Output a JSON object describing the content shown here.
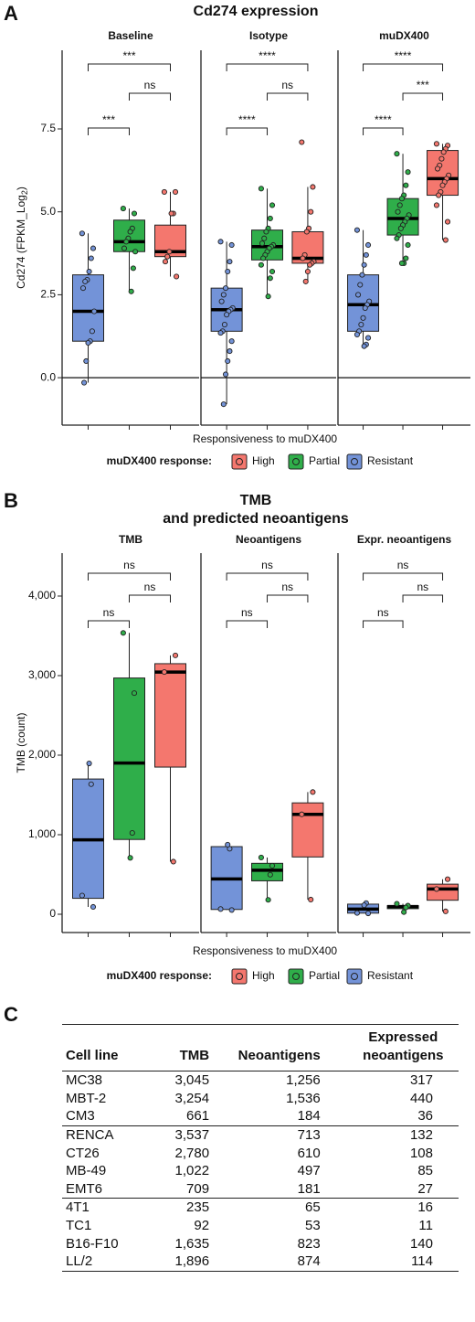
{
  "chart_data": [
    {
      "type": "boxplot",
      "panel": "A",
      "title": "Cd274 expression",
      "y_label": {
        "main": "Cd274 (FPKM_Log",
        "sub": "2",
        "end": ")"
      },
      "x_label": "Responsiveness to muDX400",
      "ylim": [
        -1.43,
        9.87
      ],
      "yticks": [
        {
          "value": 0,
          "label": "0.0"
        },
        {
          "value": 2.5,
          "label": "2.5"
        },
        {
          "value": 5,
          "label": "5.0"
        },
        {
          "value": 7.5,
          "label": "7.5"
        }
      ],
      "hline": 0,
      "legend_title": "muDX400 response:",
      "groups": [
        {
          "name": "Resistant",
          "color": "#7393d8"
        },
        {
          "name": "Partial",
          "color": "#2fae4a"
        },
        {
          "name": "High",
          "color": "#f4776e"
        }
      ],
      "facets": [
        {
          "name": "Baseline",
          "comparisons": [
            "***",
            "ns",
            "***"
          ],
          "boxes": [
            {
              "whisker_low": -0.15,
              "q1": 1.1,
              "median": 2.0,
              "q3": 3.1,
              "whisker_high": 4.35,
              "points": [
                4.35,
                3.9,
                3.6,
                3.2,
                2.95,
                2.9,
                2.7,
                2.0,
                1.4,
                1.1,
                1.05,
                0.5,
                -0.15
              ]
            },
            {
              "whisker_low": 2.6,
              "q1": 3.8,
              "median": 4.1,
              "q3": 4.75,
              "whisker_high": 5.1,
              "points": [
                5.1,
                4.95,
                4.5,
                4.4,
                4.2,
                4.1,
                3.9,
                3.8,
                3.3,
                2.6
              ]
            },
            {
              "whisker_low": 3.05,
              "q1": 3.65,
              "median": 3.8,
              "q3": 4.6,
              "whisker_high": 5.6,
              "points": [
                5.6,
                5.6,
                4.95,
                4.95,
                3.8,
                3.65,
                3.5,
                3.05
              ]
            }
          ]
        },
        {
          "name": "Isotype",
          "comparisons": [
            "****",
            "ns",
            "****"
          ],
          "boxes": [
            {
              "whisker_low": -0.8,
              "q1": 1.4,
              "median": 2.05,
              "q3": 2.7,
              "whisker_high": 4.1,
              "points": [
                4.1,
                4.0,
                3.5,
                3.2,
                2.7,
                2.5,
                2.3,
                2.1,
                2.05,
                2.0,
                1.9,
                1.6,
                1.4,
                1.35,
                1.1,
                0.8,
                0.5,
                0.1,
                -0.8
              ]
            },
            {
              "whisker_low": 2.45,
              "q1": 3.55,
              "median": 3.95,
              "q3": 4.45,
              "whisker_high": 5.7,
              "points": [
                5.7,
                5.2,
                4.8,
                4.5,
                4.4,
                4.2,
                4.05,
                4.0,
                3.95,
                3.9,
                3.8,
                3.7,
                3.6,
                3.4,
                3.2,
                3.0,
                2.45
              ]
            },
            {
              "whisker_low": 2.9,
              "q1": 3.45,
              "median": 3.6,
              "q3": 4.4,
              "whisker_high": 5.75,
              "points": [
                7.1,
                5.75,
                5.0,
                4.5,
                4.4,
                3.7,
                3.6,
                3.5,
                3.45,
                3.4,
                3.2,
                2.9
              ]
            }
          ]
        },
        {
          "name": "muDX400",
          "comparisons": [
            "****",
            "***",
            "****"
          ],
          "boxes": [
            {
              "whisker_low": 0.95,
              "q1": 1.4,
              "median": 2.2,
              "q3": 3.1,
              "whisker_high": 4.45,
              "points": [
                4.45,
                4.0,
                3.7,
                3.4,
                3.1,
                2.8,
                2.5,
                2.3,
                2.2,
                2.1,
                1.8,
                1.6,
                1.4,
                1.3,
                1.2,
                1.0,
                0.95
              ]
            },
            {
              "whisker_low": 3.45,
              "q1": 4.3,
              "median": 4.8,
              "q3": 5.4,
              "whisker_high": 6.75,
              "points": [
                6.75,
                6.2,
                5.8,
                5.5,
                5.4,
                5.2,
                5.0,
                4.9,
                4.8,
                4.7,
                4.6,
                4.5,
                4.3,
                4.2,
                4.0,
                3.6,
                3.45,
                3.45
              ]
            },
            {
              "whisker_low": 4.15,
              "q1": 5.5,
              "median": 6.0,
              "q3": 6.85,
              "whisker_high": 7.05,
              "points": [
                7.05,
                7.0,
                6.9,
                6.8,
                6.6,
                6.4,
                6.3,
                6.1,
                6.0,
                5.9,
                5.8,
                5.6,
                5.5,
                5.2,
                4.7,
                4.15
              ]
            }
          ]
        }
      ]
    },
    {
      "type": "boxplot",
      "panel": "B",
      "title": [
        "TMB",
        "and predicted neoantigens"
      ],
      "y_label": "TMB (count)",
      "x_label": "Responsiveness to muDX400",
      "ylim": [
        -230,
        4540
      ],
      "yticks": [
        0,
        {
          "value": 1000,
          "label": "1,000"
        },
        {
          "value": 2000,
          "label": "2,000"
        },
        {
          "value": 3000,
          "label": "3,000"
        },
        {
          "value": 4000,
          "label": "4,000"
        }
      ],
      "legend_title": "muDX400 response:",
      "groups": [
        {
          "name": "Resistant",
          "color": "#7393d8"
        },
        {
          "name": "Partial",
          "color": "#2fae4a"
        },
        {
          "name": "High",
          "color": "#f4776e"
        }
      ],
      "facets": [
        {
          "name": "TMB",
          "comparisons": [
            "ns",
            "ns",
            "ns"
          ],
          "boxes": [
            {
              "whisker_low": 92,
              "q1": 200,
              "median": 935,
              "q3": 1700,
              "whisker_high": 1896,
              "points": [
                235,
                92,
                1635,
                1896
              ]
            },
            {
              "whisker_low": 709,
              "q1": 940,
              "median": 1900,
              "q3": 2970,
              "whisker_high": 3537,
              "points": [
                3537,
                2780,
                1022,
                709
              ]
            },
            {
              "whisker_low": 661,
              "q1": 1850,
              "median": 3045,
              "q3": 3150,
              "whisker_high": 3254,
              "points": [
                3045,
                3254,
                661
              ]
            }
          ]
        },
        {
          "name": "Neoantigens",
          "comparisons": [
            "ns",
            "ns",
            "ns"
          ],
          "boxes": [
            {
              "whisker_low": 53,
              "q1": 60,
              "median": 444,
              "q3": 850,
              "whisker_high": 874,
              "points": [
                65,
                53,
                823,
                874
              ]
            },
            {
              "whisker_low": 181,
              "q1": 420,
              "median": 553,
              "q3": 640,
              "whisker_high": 713,
              "points": [
                713,
                610,
                497,
                181
              ]
            },
            {
              "whisker_low": 184,
              "q1": 720,
              "median": 1256,
              "q3": 1400,
              "whisker_high": 1536,
              "points": [
                1256,
                1536,
                184
              ]
            }
          ]
        },
        {
          "name": "Expr. neoantigens",
          "comparisons": [
            "ns",
            "ns",
            "ns"
          ],
          "boxes": [
            {
              "whisker_low": 11,
              "q1": 14,
              "median": 65,
              "q3": 127,
              "whisker_high": 140,
              "points": [
                16,
                11,
                140,
                114
              ]
            },
            {
              "whisker_low": 27,
              "q1": 70,
              "median": 96,
              "q3": 108,
              "whisker_high": 132,
              "points": [
                132,
                108,
                85,
                27
              ]
            },
            {
              "whisker_low": 36,
              "q1": 176,
              "median": 317,
              "q3": 378,
              "whisker_high": 440,
              "points": [
                317,
                440,
                36
              ]
            }
          ]
        }
      ]
    }
  ],
  "table": {
    "panel": "C",
    "headers": [
      "Cell line",
      "TMB",
      "Neoantigens",
      "Expressed neoantigens"
    ],
    "groups": [
      [
        [
          "MC38",
          "3,045",
          "1,256",
          "317"
        ],
        [
          "MBT-2",
          "3,254",
          "1,536",
          "440"
        ],
        [
          "CM3",
          "661",
          "184",
          "36"
        ]
      ],
      [
        [
          "RENCA",
          "3,537",
          "713",
          "132"
        ],
        [
          "CT26",
          "2,780",
          "610",
          "108"
        ],
        [
          "MB-49",
          "1,022",
          "497",
          "85"
        ],
        [
          "EMT6",
          "709",
          "181",
          "27"
        ]
      ],
      [
        [
          "4T1",
          "235",
          "65",
          "16"
        ],
        [
          "TC1",
          "92",
          "53",
          "11"
        ],
        [
          "B16-F10",
          "1,635",
          "823",
          "140"
        ],
        [
          "LL/2",
          "1,896",
          "874",
          "114"
        ]
      ]
    ]
  }
}
